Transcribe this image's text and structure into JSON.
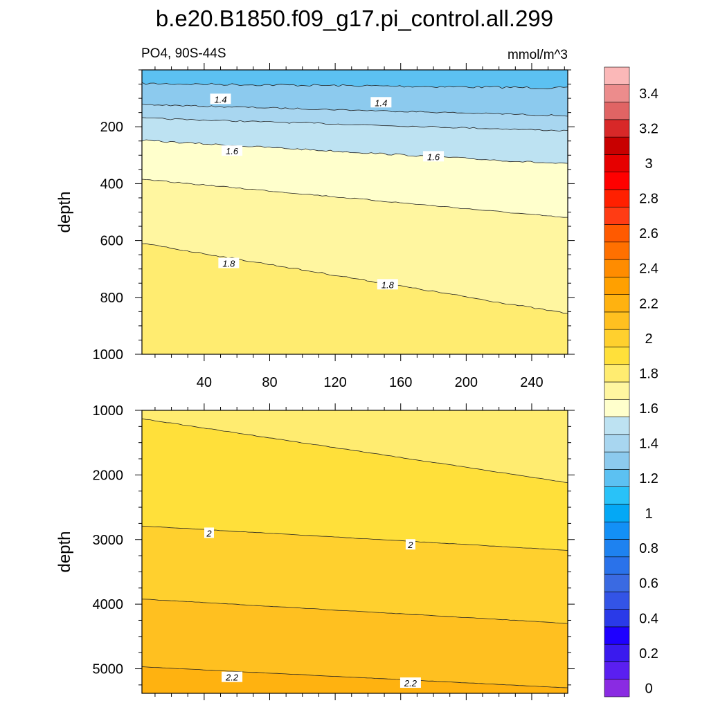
{
  "chart_data": {
    "type": "heatmap",
    "title": "b.e20.B1850.f09_g17.pi_control.all.299",
    "variable_label": "PO4, 90S-44S",
    "units_label": "mmol/m^3",
    "colorbar": {
      "levels": [
        0,
        0.1,
        0.2,
        0.3,
        0.4,
        0.5,
        0.6,
        0.7,
        0.8,
        0.9,
        1.0,
        1.1,
        1.2,
        1.3,
        1.4,
        1.5,
        1.6,
        1.7,
        1.8,
        1.9,
        2.0,
        2.1,
        2.2,
        2.3,
        2.4,
        2.5,
        2.6,
        2.7,
        2.8,
        2.9,
        3.0,
        3.1,
        3.2,
        3.3,
        3.4,
        3.5
      ],
      "tick_labels": [
        "0",
        "0.2",
        "0.4",
        "0.6",
        "0.8",
        "1",
        "1.2",
        "1.4",
        "1.6",
        "1.8",
        "2",
        "2.2",
        "2.4",
        "2.6",
        "2.8",
        "3",
        "3.2",
        "3.4"
      ],
      "colors": [
        "#8a2be2",
        "#5a1ff0",
        "#3a1aee",
        "#1e00ff",
        "#2a3ae8",
        "#3354e6",
        "#3a6ae2",
        "#2a72ea",
        "#1e82f0",
        "#1390f6",
        "#04a8f5",
        "#29c2f8",
        "#5cc1f2",
        "#8ccaee",
        "#a8d6f0",
        "#bde2f2",
        "#ffffcc",
        "#fff6a0",
        "#ffec70",
        "#ffe03a",
        "#ffd02e",
        "#ffc020",
        "#ffb210",
        "#ffa000",
        "#ff8c00",
        "#ff7000",
        "#ff5a00",
        "#ff3c14",
        "#ff2000",
        "#ff0000",
        "#e60000",
        "#c80000",
        "#d82828",
        "#e06464",
        "#ec8c8c",
        "#fbb8b8"
      ]
    },
    "panels": [
      {
        "x_ticks": [
          40,
          80,
          120,
          160,
          200,
          240
        ],
        "xlim": [
          2,
          262
        ],
        "y_ticks": [
          200,
          400,
          600,
          800,
          1000
        ],
        "ylim": [
          0,
          1000
        ],
        "ylabel": "depth",
        "contour_values": [
          1.3,
          1.4,
          1.5,
          1.6,
          1.7,
          1.8
        ],
        "contour_labels": [
          {
            "text": "1.4",
            "x": 50,
            "depth": 103
          },
          {
            "text": "1.4",
            "x": 148,
            "depth": 115
          },
          {
            "text": "1.6",
            "x": 57,
            "depth": 285
          },
          {
            "text": "1.6",
            "x": 180,
            "depth": 305
          },
          {
            "text": "1.8",
            "x": 55,
            "depth": 680
          },
          {
            "text": "1.8",
            "x": 152,
            "depth": 755
          }
        ]
      },
      {
        "x_ticks": [
          40,
          80,
          120,
          160,
          200,
          240
        ],
        "xlim": [
          2,
          262
        ],
        "y_ticks": [
          1000,
          2000,
          3000,
          4000,
          5000
        ],
        "ylim": [
          1000,
          5380
        ],
        "ylabel": "depth",
        "contour_values": [
          1.9,
          2.0,
          2.1,
          2.2
        ],
        "contour_labels": [
          {
            "text": "2",
            "x": 43,
            "depth": 2900
          },
          {
            "text": "2",
            "x": 166,
            "depth": 3080
          },
          {
            "text": "2.2",
            "x": 57,
            "depth": 5130
          },
          {
            "text": "2.2",
            "x": 166,
            "depth": 5220
          }
        ]
      }
    ]
  }
}
